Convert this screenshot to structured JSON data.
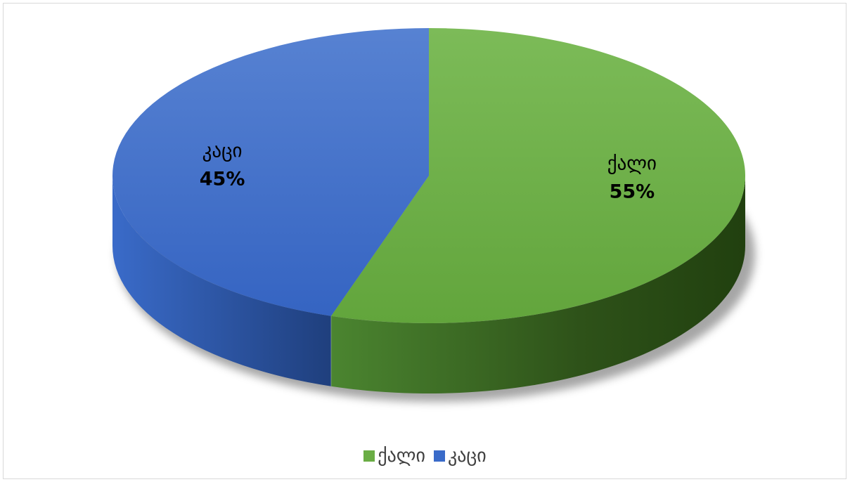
{
  "chart_data": {
    "type": "pie",
    "title": "",
    "categories": [
      "ქალი",
      "კაცი"
    ],
    "values": [
      55,
      45
    ],
    "value_labels": [
      "55%",
      "45%"
    ],
    "colors": [
      "#6aad45",
      "#3a6bc9"
    ],
    "start_angle_deg": 0,
    "direction": "clockwise",
    "style": "3d",
    "legend_position": "bottom"
  },
  "legend": {
    "items": [
      {
        "label": "ქალი",
        "color": "#6aad45"
      },
      {
        "label": "კაცი",
        "color": "#3a6bc9"
      }
    ]
  }
}
